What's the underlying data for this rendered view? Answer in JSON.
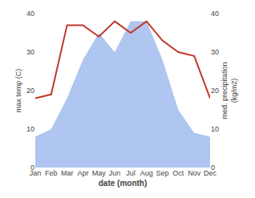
{
  "chart_data": {
    "type": "line",
    "categories": [
      "Jan",
      "Feb",
      "Mar",
      "Apr",
      "May",
      "Jun",
      "Jul",
      "Aug",
      "Sep",
      "Oct",
      "Nov",
      "Dec"
    ],
    "series": [
      {
        "type": "area",
        "axis": "y2",
        "color": "#aec6f0",
        "values": [
          8,
          10,
          18,
          28,
          35,
          30,
          38,
          38,
          28,
          15,
          9,
          8
        ]
      },
      {
        "type": "line",
        "color": "#c0392b",
        "values": [
          18,
          19,
          37,
          37,
          34,
          38,
          35,
          38,
          33,
          30,
          29,
          18
        ]
      }
    ],
    "xlabel": "date (month)",
    "ylabel": "max temp (C)",
    "y2label": "med. precipitation\n(kg/m2)",
    "ylim": [
      0,
      40
    ],
    "yticks": [
      0,
      10,
      20,
      30,
      40
    ],
    "y2lim": [
      0,
      40
    ],
    "y2ticks": [
      0,
      10,
      20,
      30,
      40
    ],
    "grid": false
  }
}
